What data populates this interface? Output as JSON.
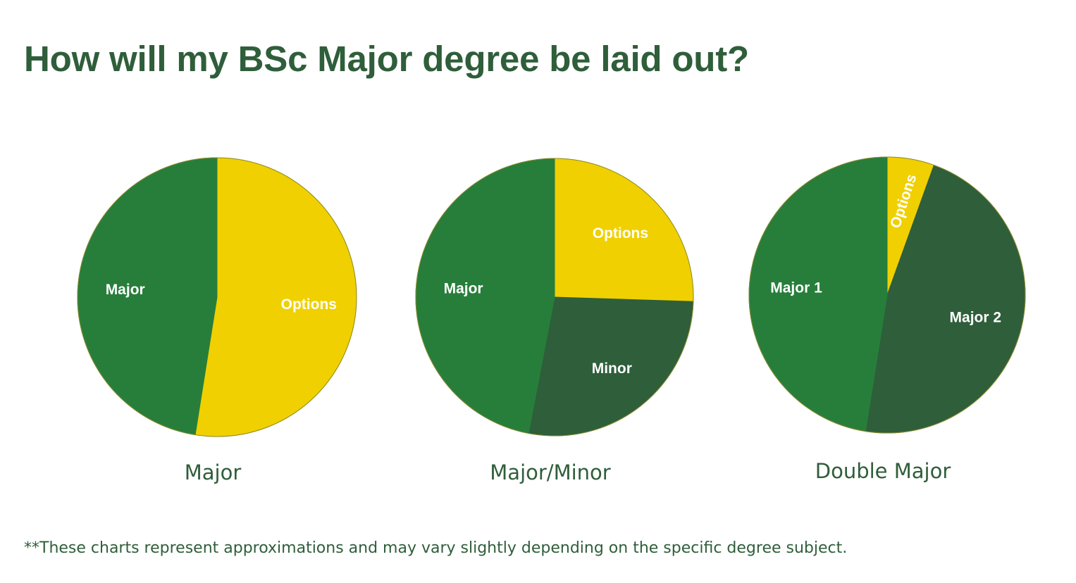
{
  "page": {
    "title": "How will my BSc Major degree be laid out?",
    "footnote": "**These charts represent approximations and may vary slightly depending on the specific degree subject."
  },
  "colors": {
    "title_text": "#2f5e3a",
    "major_green": "#277e3b",
    "dark_green": "#2e5e3a",
    "options_yellow": "#f0d000",
    "slice_label": "#ffffff"
  },
  "chart_data": [
    {
      "type": "pie",
      "title": "Major",
      "start_angle_deg": 0,
      "direction": "clockwise",
      "slices": [
        {
          "label": "Options",
          "value": 52.5,
          "color": "#f0d000"
        },
        {
          "label": "Major",
          "value": 47.5,
          "color": "#277e3b"
        }
      ]
    },
    {
      "type": "pie",
      "title": "Major/Minor",
      "start_angle_deg": 0,
      "direction": "clockwise",
      "slices": [
        {
          "label": "Options",
          "value": 25.5,
          "color": "#f0d000"
        },
        {
          "label": "Minor",
          "value": 27.5,
          "color": "#2e5e3a"
        },
        {
          "label": "Major",
          "value": 47,
          "color": "#277e3b"
        }
      ]
    },
    {
      "type": "pie",
      "title": "Double Major",
      "start_angle_deg": 0,
      "direction": "clockwise",
      "slices": [
        {
          "label": "Options",
          "value": 5.5,
          "color": "#f0d000"
        },
        {
          "label": "Major 2",
          "value": 47,
          "color": "#2e5e3a"
        },
        {
          "label": "Major 1",
          "value": 47.5,
          "color": "#277e3b"
        }
      ]
    }
  ]
}
